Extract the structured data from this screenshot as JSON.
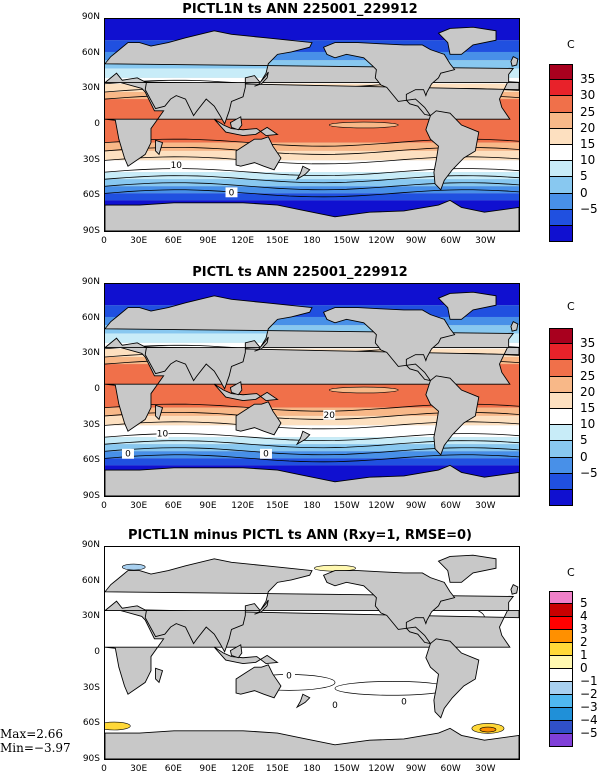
{
  "panels": [
    {
      "title": "PICTL1N ts ANN 225001_229912",
      "unit": "C",
      "colorbar_labels": [
        "35",
        "30",
        "25",
        "20",
        "15",
        "10",
        "5",
        "0",
        "−5"
      ],
      "colorbar_colors": [
        "#a8001e",
        "#e8222a",
        "#f0704a",
        "#f8b888",
        "#fde0c0",
        "#ffffff",
        "#c8ecf8",
        "#88c8f0",
        "#4890e8",
        "#2050e0",
        "#1010d0"
      ],
      "contour_labels": [
        "10",
        "0"
      ],
      "kind": "absolute"
    },
    {
      "title": "PICTL ts ANN 225001_229912",
      "unit": "C",
      "colorbar_labels": [
        "35",
        "30",
        "25",
        "20",
        "15",
        "10",
        "5",
        "0",
        "−5"
      ],
      "colorbar_colors": [
        "#a8001e",
        "#e8222a",
        "#f0704a",
        "#f8b888",
        "#fde0c0",
        "#ffffff",
        "#c8ecf8",
        "#88c8f0",
        "#4890e8",
        "#2050e0",
        "#1010d0"
      ],
      "contour_labels": [
        "10",
        "0",
        "0",
        "20"
      ],
      "kind": "absolute"
    },
    {
      "title": "PICTL1N minus PICTL ts ANN (Rxy=1, RMSE=0)",
      "unit": "C",
      "colorbar_labels": [
        "5",
        "4",
        "3",
        "2",
        "1",
        "0",
        "−1",
        "−2",
        "−3",
        "−4",
        "−5"
      ],
      "colorbar_colors": [
        "#f080c8",
        "#c80000",
        "#ff0000",
        "#ff9000",
        "#ffd838",
        "#fff8b0",
        "#ffffff",
        "#a8d0f0",
        "#50b8f0",
        "#2090d8",
        "#3050c8",
        "#8040d8"
      ],
      "contour_labels": [
        "0",
        "0",
        "0"
      ],
      "kind": "difference",
      "stats": {
        "max": "Max=2.66",
        "min": "Min=−3.97"
      }
    }
  ],
  "lat_labels": [
    "90N",
    "60N",
    "30N",
    "0",
    "30S",
    "60S",
    "90S"
  ],
  "lon_labels": [
    "0",
    "30E",
    "60E",
    "90E",
    "120E",
    "150E",
    "180",
    "150W",
    "120W",
    "90W",
    "60W",
    "30W"
  ]
}
